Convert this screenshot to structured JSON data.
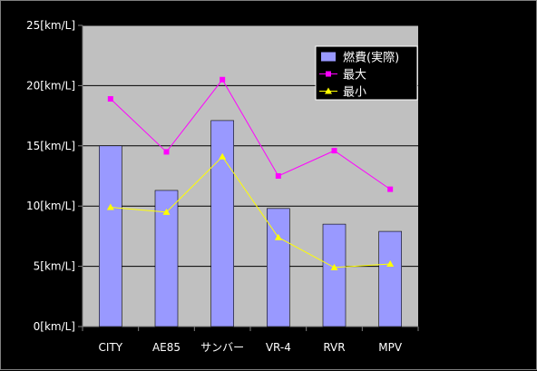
{
  "chart_data": {
    "type": "bar",
    "categories": [
      "CITY",
      "AE85",
      "サンバー",
      "VR-4",
      "RVR",
      "MPV"
    ],
    "ylim": [
      0,
      25
    ],
    "y_ticks": [
      {
        "value": 0,
        "label": "0[km/L]"
      },
      {
        "value": 5,
        "label": "5[km/L]"
      },
      {
        "value": 10,
        "label": "10[km/L]"
      },
      {
        "value": 15,
        "label": "15[km/L]"
      },
      {
        "value": 20,
        "label": "20[km/L]"
      },
      {
        "value": 25,
        "label": "25[km/L]"
      }
    ],
    "grid": true,
    "legend_position": "top-right",
    "series": [
      {
        "name": "燃費(実際)",
        "kind": "bar",
        "color": "#9999ff",
        "values": [
          15.0,
          11.3,
          17.1,
          9.8,
          8.5,
          7.9
        ]
      },
      {
        "name": "最大",
        "kind": "line",
        "marker": "square",
        "color": "#ff00ff",
        "values": [
          18.9,
          14.5,
          20.5,
          12.5,
          14.6,
          11.4
        ]
      },
      {
        "name": "最小",
        "kind": "line",
        "marker": "triangle",
        "color": "#ffff00",
        "values": [
          9.9,
          9.5,
          14.1,
          7.4,
          4.9,
          5.2
        ]
      }
    ]
  }
}
